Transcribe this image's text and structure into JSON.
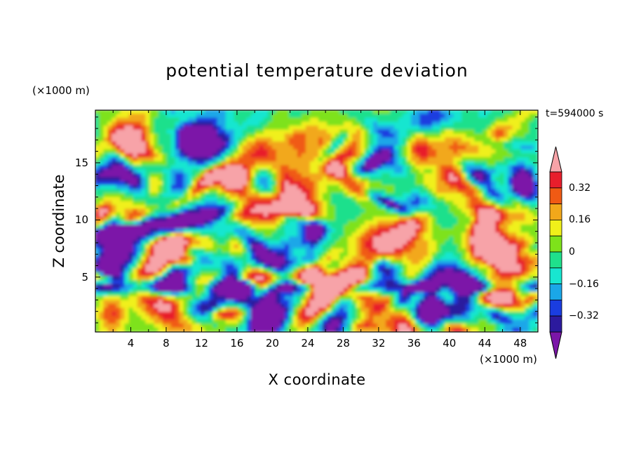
{
  "chart_data": {
    "type": "heatmap",
    "title": "potential temperature deviation",
    "xlabel": "X coordinate",
    "ylabel": "Z coordinate",
    "x_unit": "(×1000 m)",
    "z_unit": "(×1000 m)",
    "time_label": "t=594000 s",
    "xlim": [
      0,
      50
    ],
    "ylim": [
      0.2,
      19.6
    ],
    "x_ticks": [
      4,
      8,
      12,
      16,
      20,
      24,
      28,
      32,
      36,
      40,
      44,
      48
    ],
    "x_tick_labels": [
      "4",
      "8",
      "12",
      "16",
      "20",
      "24",
      "28",
      "32",
      "36",
      "40",
      "44",
      "48"
    ],
    "y_ticks": [
      5,
      10,
      15
    ],
    "y_tick_labels": [
      "5",
      "10",
      "15"
    ],
    "colorbar": {
      "levels": [
        -0.4,
        -0.32,
        -0.24,
        -0.16,
        -0.08,
        0,
        0.08,
        0.16,
        0.24,
        0.32,
        0.4
      ],
      "labels": [
        "0.32",
        "0.16",
        "0",
        "−0.16",
        "−0.32"
      ],
      "label_values": [
        0.32,
        0.16,
        0,
        -0.16,
        -0.32
      ],
      "colors": [
        "#7b16a8",
        "#2c1a9e",
        "#1a3de0",
        "#1aa7e8",
        "#18e6d0",
        "#1fe08c",
        "#7ee21a",
        "#f0f01a",
        "#f2a81a",
        "#f05a14",
        "#e81e2c",
        "#f7a3a8"
      ],
      "extend": "both"
    },
    "field_description": "randomly varying deviation field; strong negative band near z≈4, highly variable field above"
  }
}
